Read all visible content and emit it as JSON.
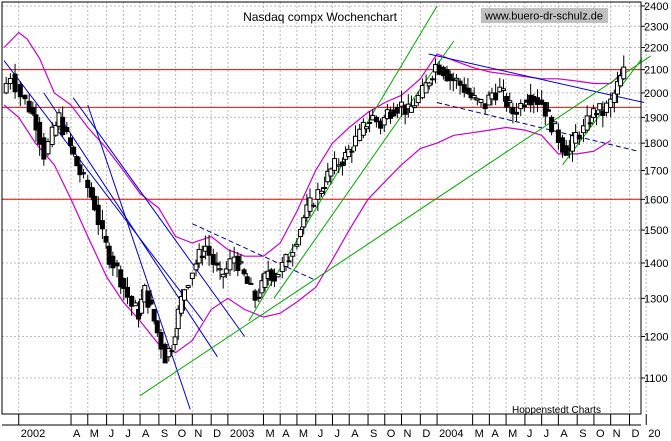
{
  "chart_data": {
    "type": "candlestick",
    "title": "Nasdaq compx Wochenchart",
    "watermark": "www.buero-dr-schulz.de",
    "source": "Hoppenstedt Charts",
    "y_scale": "log",
    "ylim": [
      1020,
      2420
    ],
    "xlim": [
      2001.92,
      2004.975
    ],
    "yticks": [
      1100,
      1200,
      1300,
      1400,
      1500,
      1600,
      1700,
      1800,
      1900,
      2000,
      2100,
      2200,
      2300,
      2400
    ],
    "yticklabels": [
      "1100",
      "1200",
      "1300",
      "1400",
      "1500",
      "1600",
      "1700",
      "1800",
      "1900",
      "2000",
      "2100",
      "2200",
      "2300",
      "2400"
    ],
    "xticks": [
      {
        "label": "2002",
        "t": 2002.0
      },
      {
        "label": "A",
        "t": 2002.25
      },
      {
        "label": "M",
        "t": 2002.33
      },
      {
        "label": "J",
        "t": 2002.42
      },
      {
        "label": "J",
        "t": 2002.5
      },
      {
        "label": "A",
        "t": 2002.58
      },
      {
        "label": "S",
        "t": 2002.67
      },
      {
        "label": "O",
        "t": 2002.75
      },
      {
        "label": "N",
        "t": 2002.83
      },
      {
        "label": "D",
        "t": 2002.92
      },
      {
        "label": "2003",
        "t": 2003.0
      },
      {
        "label": "M",
        "t": 2003.17
      },
      {
        "label": "A",
        "t": 2003.25
      },
      {
        "label": "M",
        "t": 2003.33
      },
      {
        "label": "J",
        "t": 2003.42
      },
      {
        "label": "J",
        "t": 2003.5
      },
      {
        "label": "A",
        "t": 2003.58
      },
      {
        "label": "S",
        "t": 2003.67
      },
      {
        "label": "O",
        "t": 2003.75
      },
      {
        "label": "N",
        "t": 2003.83
      },
      {
        "label": "D",
        "t": 2003.92
      },
      {
        "label": "2004",
        "t": 2004.0
      },
      {
        "label": "M",
        "t": 2004.17
      },
      {
        "label": "A",
        "t": 2004.25
      },
      {
        "label": "M",
        "t": 2004.33
      },
      {
        "label": "J",
        "t": 2004.42
      },
      {
        "label": "J",
        "t": 2004.5
      },
      {
        "label": "A",
        "t": 2004.58
      },
      {
        "label": "S",
        "t": 2004.67
      },
      {
        "label": "O",
        "t": 2004.75
      },
      {
        "label": "N",
        "t": 2004.83
      },
      {
        "label": "D",
        "t": 2004.92
      },
      {
        "label": "20",
        "t": 2005.0
      }
    ],
    "grid": true,
    "close_path": [
      [
        2001.93,
        2000
      ],
      [
        2001.97,
        2080
      ],
      [
        2002.02,
        1990
      ],
      [
        2002.06,
        1940
      ],
      [
        2002.09,
        1880
      ],
      [
        2002.13,
        1760
      ],
      [
        2002.17,
        1830
      ],
      [
        2002.2,
        1900
      ],
      [
        2002.24,
        1820
      ],
      [
        2002.27,
        1750
      ],
      [
        2002.3,
        1690
      ],
      [
        2002.34,
        1640
      ],
      [
        2002.37,
        1580
      ],
      [
        2002.41,
        1480
      ],
      [
        2002.44,
        1420
      ],
      [
        2002.48,
        1380
      ],
      [
        2002.51,
        1330
      ],
      [
        2002.55,
        1280
      ],
      [
        2002.58,
        1260
      ],
      [
        2002.61,
        1320
      ],
      [
        2002.64,
        1270
      ],
      [
        2002.67,
        1210
      ],
      [
        2002.71,
        1150
      ],
      [
        2002.74,
        1180
      ],
      [
        2002.77,
        1260
      ],
      [
        2002.8,
        1330
      ],
      [
        2002.84,
        1380
      ],
      [
        2002.87,
        1420
      ],
      [
        2002.9,
        1450
      ],
      [
        2002.94,
        1400
      ],
      [
        2002.97,
        1360
      ],
      [
        2003.0,
        1380
      ],
      [
        2003.04,
        1420
      ],
      [
        2003.07,
        1380
      ],
      [
        2003.1,
        1340
      ],
      [
        2003.14,
        1300
      ],
      [
        2003.17,
        1330
      ],
      [
        2003.2,
        1380
      ],
      [
        2003.23,
        1360
      ],
      [
        2003.27,
        1390
      ],
      [
        2003.3,
        1420
      ],
      [
        2003.34,
        1480
      ],
      [
        2003.37,
        1540
      ],
      [
        2003.4,
        1580
      ],
      [
        2003.44,
        1620
      ],
      [
        2003.47,
        1660
      ],
      [
        2003.5,
        1700
      ],
      [
        2003.54,
        1730
      ],
      [
        2003.57,
        1750
      ],
      [
        2003.6,
        1790
      ],
      [
        2003.64,
        1830
      ],
      [
        2003.67,
        1880
      ],
      [
        2003.7,
        1900
      ],
      [
        2003.74,
        1870
      ],
      [
        2003.77,
        1920
      ],
      [
        2003.8,
        1940
      ],
      [
        2003.84,
        1950
      ],
      [
        2003.87,
        1920
      ],
      [
        2003.9,
        1960
      ],
      [
        2003.94,
        2000
      ],
      [
        2003.97,
        2060
      ],
      [
        2004.0,
        2120
      ],
      [
        2004.04,
        2100
      ],
      [
        2004.07,
        2060
      ],
      [
        2004.1,
        2050
      ],
      [
        2004.14,
        2020
      ],
      [
        2004.17,
        1980
      ],
      [
        2004.2,
        1960
      ],
      [
        2004.24,
        1950
      ],
      [
        2004.27,
        2000
      ],
      [
        2004.31,
        2010
      ],
      [
        2004.34,
        1960
      ],
      [
        2004.37,
        1920
      ],
      [
        2004.41,
        1950
      ],
      [
        2004.44,
        1990
      ],
      [
        2004.47,
        1980
      ],
      [
        2004.51,
        1960
      ],
      [
        2004.54,
        1900
      ],
      [
        2004.57,
        1850
      ],
      [
        2004.61,
        1790
      ],
      [
        2004.64,
        1770
      ],
      [
        2004.67,
        1830
      ],
      [
        2004.71,
        1850
      ],
      [
        2004.74,
        1900
      ],
      [
        2004.77,
        1930
      ],
      [
        2004.8,
        1920
      ],
      [
        2004.84,
        1960
      ],
      [
        2004.87,
        2030
      ],
      [
        2004.9,
        2090
      ]
    ],
    "upper_band": [
      [
        2001.93,
        2200
      ],
      [
        2002.0,
        2270
      ],
      [
        2002.04,
        2240
      ],
      [
        2002.1,
        2150
      ],
      [
        2002.17,
        2000
      ],
      [
        2002.25,
        1950
      ],
      [
        2002.33,
        1860
      ],
      [
        2002.42,
        1780
      ],
      [
        2002.5,
        1700
      ],
      [
        2002.58,
        1620
      ],
      [
        2002.67,
        1570
      ],
      [
        2002.75,
        1480
      ],
      [
        2002.83,
        1460
      ],
      [
        2002.92,
        1480
      ],
      [
        2003.0,
        1440
      ],
      [
        2003.08,
        1420
      ],
      [
        2003.17,
        1420
      ],
      [
        2003.25,
        1460
      ],
      [
        2003.33,
        1560
      ],
      [
        2003.42,
        1700
      ],
      [
        2003.5,
        1800
      ],
      [
        2003.58,
        1860
      ],
      [
        2003.67,
        1920
      ],
      [
        2003.75,
        1960
      ],
      [
        2003.83,
        1990
      ],
      [
        2003.92,
        2060
      ],
      [
        2004.0,
        2170
      ],
      [
        2004.08,
        2140
      ],
      [
        2004.17,
        2110
      ],
      [
        2004.25,
        2090
      ],
      [
        2004.33,
        2080
      ],
      [
        2004.42,
        2070
      ],
      [
        2004.5,
        2060
      ],
      [
        2004.58,
        2060
      ],
      [
        2004.67,
        2050
      ],
      [
        2004.75,
        2040
      ],
      [
        2004.83,
        2040
      ],
      [
        2004.9,
        2100
      ]
    ],
    "lower_band": [
      [
        2001.93,
        1950
      ],
      [
        2002.0,
        1900
      ],
      [
        2002.08,
        1800
      ],
      [
        2002.17,
        1720
      ],
      [
        2002.25,
        1600
      ],
      [
        2002.33,
        1480
      ],
      [
        2002.42,
        1360
      ],
      [
        2002.5,
        1290
      ],
      [
        2002.58,
        1240
      ],
      [
        2002.67,
        1180
      ],
      [
        2002.75,
        1160
      ],
      [
        2002.83,
        1190
      ],
      [
        2002.92,
        1270
      ],
      [
        2003.0,
        1300
      ],
      [
        2003.08,
        1270
      ],
      [
        2003.17,
        1250
      ],
      [
        2003.25,
        1260
      ],
      [
        2003.33,
        1290
      ],
      [
        2003.42,
        1330
      ],
      [
        2003.5,
        1410
      ],
      [
        2003.58,
        1500
      ],
      [
        2003.67,
        1600
      ],
      [
        2003.75,
        1660
      ],
      [
        2003.83,
        1720
      ],
      [
        2003.92,
        1780
      ],
      [
        2004.0,
        1800
      ],
      [
        2004.08,
        1830
      ],
      [
        2004.17,
        1840
      ],
      [
        2004.25,
        1850
      ],
      [
        2004.33,
        1860
      ],
      [
        2004.42,
        1850
      ],
      [
        2004.5,
        1830
      ],
      [
        2004.58,
        1760
      ],
      [
        2004.67,
        1760
      ],
      [
        2004.75,
        1770
      ],
      [
        2004.83,
        1810
      ]
    ],
    "horizontal_lines": [
      2100,
      1940,
      1600
    ],
    "trendlines": [
      {
        "color": "#0000cc",
        "dashed": false,
        "points": [
          [
            2001.93,
            2140
          ],
          [
            2002.88,
            1240
          ]
        ]
      },
      {
        "color": "#0000cc",
        "dashed": false,
        "points": [
          [
            2002.12,
            2000
          ],
          [
            2002.95,
            1150
          ]
        ]
      },
      {
        "color": "#0000cc",
        "dashed": false,
        "points": [
          [
            2002.26,
            1980
          ],
          [
            2003.08,
            1200
          ]
        ]
      },
      {
        "color": "#0000cc",
        "dashed": false,
        "points": [
          [
            2002.33,
            1950
          ],
          [
            2002.82,
            1030
          ]
        ]
      },
      {
        "color": "#000080",
        "dashed": true,
        "points": [
          [
            2002.83,
            1520
          ],
          [
            2003.42,
            1350
          ]
        ]
      },
      {
        "color": "#000080",
        "dashed": true,
        "points": [
          [
            2004.0,
            1960
          ],
          [
            2004.96,
            1770
          ]
        ]
      },
      {
        "color": "#0000cc",
        "dashed": false,
        "points": [
          [
            2003.96,
            2170
          ],
          [
            2004.99,
            1960
          ]
        ]
      },
      {
        "color": "#00aa00",
        "dashed": false,
        "points": [
          [
            2002.58,
            1060
          ],
          [
            2005.02,
            2160
          ]
        ]
      },
      {
        "color": "#00aa00",
        "dashed": false,
        "points": [
          [
            2003.1,
            1240
          ],
          [
            2004.0,
            2400
          ]
        ]
      },
      {
        "color": "#00aa00",
        "dashed": false,
        "points": [
          [
            2003.22,
            1300
          ],
          [
            2004.08,
            2230
          ]
        ]
      },
      {
        "color": "#00aa00",
        "dashed": false,
        "points": [
          [
            2004.6,
            1720
          ],
          [
            2004.98,
            2150
          ]
        ]
      }
    ]
  }
}
